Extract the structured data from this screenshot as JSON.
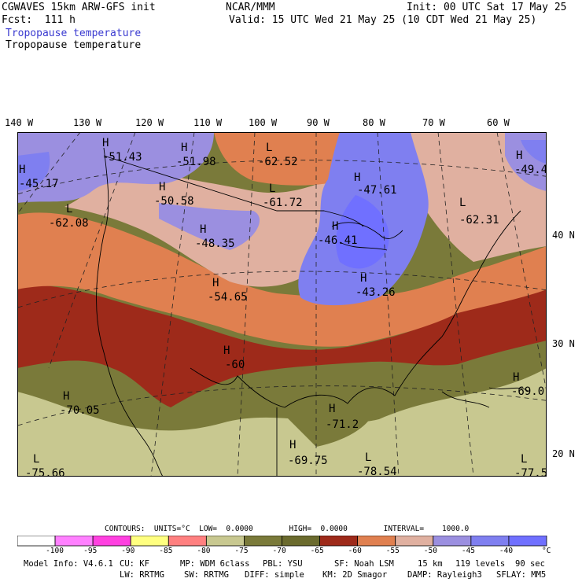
{
  "header": {
    "left1": "CGWAVES 15km ARW-GFS init",
    "left2": "Fcst:  111 h",
    "field1": "Tropopause temperature",
    "field2": "Tropopause temperature",
    "center": "NCAR/MMM",
    "init": "Init: 00 UTC Sat 17 May 25",
    "valid": "Valid: 15 UTC Wed 21 May 25 (10 CDT Wed 21 May 25)"
  },
  "lon_labels": [
    "140 W",
    "130 W",
    "120 W",
    "110 W",
    "100 W",
    "90 W",
    "80 W",
    "70 W",
    "60 W"
  ],
  "lat_labels": [
    "40 N",
    "30 N",
    "20 N"
  ],
  "map_labels": [
    {
      "type": "H",
      "value": "-51.43"
    },
    {
      "type": "H",
      "value": "-45.17"
    },
    {
      "type": "H",
      "value": "-51.98"
    },
    {
      "type": "L",
      "value": "-62.52"
    },
    {
      "type": "L",
      "value": "-61.72"
    },
    {
      "type": "H",
      "value": "-47.61"
    },
    {
      "type": "H",
      "value": "-49.4"
    },
    {
      "type": "H",
      "value": "-50.58"
    },
    {
      "type": "L",
      "value": "-62.08"
    },
    {
      "type": "H",
      "value": "-48.35"
    },
    {
      "type": "H",
      "value": "-46.41"
    },
    {
      "type": "L",
      "value": "-62.31"
    },
    {
      "type": "H",
      "value": "-54.65"
    },
    {
      "type": "H",
      "value": "-43.26"
    },
    {
      "type": "H",
      "value": "-60"
    },
    {
      "type": "H",
      "value": "-70.05"
    },
    {
      "type": "H",
      "value": "-69.0"
    },
    {
      "type": "H",
      "value": "-71.2"
    },
    {
      "type": "H",
      "value": "-69.75"
    },
    {
      "type": "L",
      "value": "-78.54"
    },
    {
      "type": "L",
      "value": "-75.66"
    },
    {
      "type": "L",
      "value": "-77.5"
    }
  ],
  "contours": {
    "title": "CONTOURS:  UNITS=°C  LOW=  0.0000        HIGH=  0.0000        INTERVAL=    1000.0",
    "levels": [
      "-100",
      "-95",
      "-90",
      "-85",
      "-80",
      "-75",
      "-70",
      "-65",
      "-60",
      "-55",
      "-50",
      "-45",
      "-40"
    ],
    "unit": "°C",
    "colors": [
      "#ffffff",
      "#ff80ff",
      "#ff40e0",
      "#ffff80",
      "#ff8080",
      "#c8c890",
      "#7a7a3a",
      "#6b6b2e",
      "#9e2a1a",
      "#e08050",
      "#e0b0a0",
      "#9b8fe0",
      "#7f7ff0",
      "#7070ff"
    ]
  },
  "footer": {
    "model_info": "Model Info: V4.6.1",
    "cu": "CU: KF",
    "mp": "MP: WDM 6class",
    "pbl": "PBL: YSU",
    "sf": "SF: Noah LSM",
    "res": "15 km",
    "levels": "119 levels",
    "dt": "90 sec",
    "lw": "LW: RRTMG",
    "sw": "SW: RRTMG",
    "diff": "DIFF: simple",
    "km": "KM: 2D Smagor",
    "damp": "DAMP: Rayleigh3",
    "sflay": "SFLAY: MM5"
  }
}
